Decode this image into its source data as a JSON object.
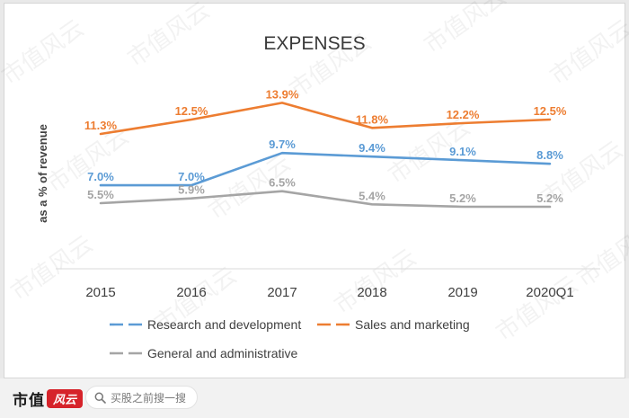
{
  "chart_data": {
    "type": "line",
    "title": "EXPENSES",
    "ylabel": "as a % of revenue",
    "xlabel": "",
    "categories": [
      "2015",
      "2016",
      "2017",
      "2018",
      "2019",
      "2020Q1"
    ],
    "ylim": [
      0,
      18
    ],
    "grid": false,
    "legend_position": "bottom",
    "series": [
      {
        "name": "Research and development",
        "color": "#5b9bd5",
        "values": [
          7.0,
          7.0,
          9.7,
          9.4,
          9.1,
          8.8
        ],
        "labels": [
          "7.0%",
          "7.0%",
          "9.7%",
          "9.4%",
          "9.1%",
          "8.8%"
        ]
      },
      {
        "name": "Sales and marketing",
        "color": "#ed7d31",
        "values": [
          11.3,
          12.5,
          13.9,
          11.8,
          12.2,
          12.5
        ],
        "labels": [
          "11.3%",
          "12.5%",
          "13.9%",
          "11.8%",
          "12.2%",
          "12.5%"
        ]
      },
      {
        "name": "General and administrative",
        "color": "#a5a5a5",
        "values": [
          5.5,
          5.9,
          6.5,
          5.4,
          5.2,
          5.2
        ],
        "labels": [
          "5.5%",
          "5.9%",
          "6.5%",
          "5.4%",
          "5.2%",
          "5.2%"
        ]
      }
    ]
  },
  "watermark": {
    "text": "市值风云"
  },
  "footer": {
    "brand_name": "市值",
    "brand_seal": "风云",
    "search_icon": "search-icon",
    "search_placeholder": "买股之前搜一搜"
  }
}
